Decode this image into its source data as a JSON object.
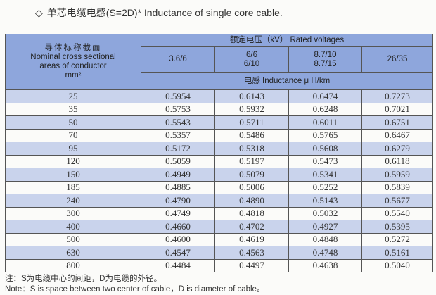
{
  "title": {
    "icon": "diamond-outline-icon",
    "text": "单芯电缆电感(S=2D)*  Inductance of single core cable."
  },
  "header": {
    "cross_section_zh": "导体标称截面",
    "cross_section_en1": "Nominal cross sectional",
    "cross_section_en2": "areas of conductor",
    "cross_section_unit": "mm²",
    "rated_voltages": "额定电压（kV）   Rated voltages",
    "voltages": [
      [
        "3.6/6"
      ],
      [
        "6/6",
        "6/10"
      ],
      [
        "8.7/10",
        "8.7/15"
      ],
      [
        "26/35"
      ]
    ],
    "inductance": "电感   Inductance  μ H/km"
  },
  "rows": [
    [
      "25",
      "0.5954",
      "0.6143",
      "0.6474",
      "0.7273"
    ],
    [
      "35",
      "0.5753",
      "0.5932",
      "0.6248",
      "0.7021"
    ],
    [
      "50",
      "0.5543",
      "0.5711",
      "0.6011",
      "0.6751"
    ],
    [
      "70",
      "0.5357",
      "0.5486",
      "0.5765",
      "0.6467"
    ],
    [
      "95",
      "0.5172",
      "0.5318",
      "0.5608",
      "0.6279"
    ],
    [
      "120",
      "0.5059",
      "0.5197",
      "0.5473",
      "0.6118"
    ],
    [
      "150",
      "0.4949",
      "0.5079",
      "0.5341",
      "0.5959"
    ],
    [
      "185",
      "0.4885",
      "0.5006",
      "0.5252",
      "0.5839"
    ],
    [
      "240",
      "0.4790",
      "0.4890",
      "0.5143",
      "0.5677"
    ],
    [
      "300",
      "0.4749",
      "0.4818",
      "0.5032",
      "0.5540"
    ],
    [
      "400",
      "0.4660",
      "0.4702",
      "0.4927",
      "0.5395"
    ],
    [
      "500",
      "0.4600",
      "0.4619",
      "0.4848",
      "0.5272"
    ],
    [
      "630",
      "0.4547",
      "0.4563",
      "0.4748",
      "0.5161"
    ],
    [
      "800",
      "0.4484",
      "0.4497",
      "0.4638",
      "0.5040"
    ]
  ],
  "notes": {
    "zh": "注：S为电缆中心的间距，D为电缆的外径。",
    "en": "Note：S is space between two center of cable，D is diameter of cable。"
  },
  "colors": {
    "header": "#8ea6dc",
    "alt_row": "#c9d3ec"
  }
}
